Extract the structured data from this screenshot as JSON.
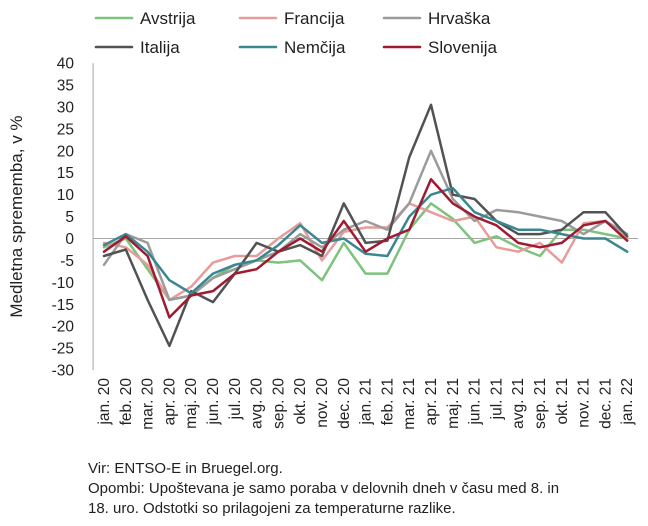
{
  "chart_data": {
    "type": "line",
    "ylabel": "Medletna sprememba, v %",
    "ylim": [
      -30,
      40
    ],
    "yticks": [
      40,
      35,
      30,
      25,
      20,
      15,
      10,
      5,
      0,
      -5,
      -10,
      -15,
      -20,
      -25,
      -30
    ],
    "grid": false,
    "legend_position": "top",
    "categories": [
      "jan. 20",
      "feb. 20",
      "mar. 20",
      "apr. 20",
      "maj. 20",
      "jun. 20",
      "jul. 20",
      "avg. 20",
      "sep. 20",
      "okt. 20",
      "nov. 20",
      "dec. 20",
      "jan. 21",
      "feb. 21",
      "mar. 21",
      "apr. 21",
      "maj. 21",
      "jun. 21",
      "jul. 21",
      "avg. 21",
      "sep. 21",
      "okt. 21",
      "nov. 21",
      "dec. 21",
      "jan. 22"
    ],
    "series": [
      {
        "name": "Avstrija",
        "color": "#7dc37d",
        "values": [
          -2,
          0,
          -7,
          -14,
          -13,
          -9,
          -6,
          -5,
          -5.5,
          -5,
          -9.5,
          -1,
          -8,
          -8,
          2,
          8,
          4.5,
          -1,
          0.5,
          -2,
          -4,
          2,
          2,
          1,
          0
        ]
      },
      {
        "name": "Francija",
        "color": "#e89c9a",
        "values": [
          -1,
          -2,
          -6,
          -14,
          -11,
          -5.5,
          -4,
          -4,
          0,
          3.5,
          -5,
          1.5,
          2.5,
          2.5,
          8,
          6,
          4,
          5,
          -2,
          -3,
          -1,
          -5.5,
          3.5,
          4,
          0
        ]
      },
      {
        "name": "Hrvaška",
        "color": "#9b9b9b",
        "values": [
          -6,
          1,
          -1,
          -14,
          -13,
          -9,
          -7,
          -5,
          -3,
          1,
          -2,
          2,
          4,
          2,
          8,
          20,
          9,
          4,
          6.5,
          6,
          5,
          4,
          1,
          4,
          1
        ]
      },
      {
        "name": "Italija",
        "color": "#525252",
        "values": [
          -4,
          -2.5,
          -14,
          -24.5,
          -12,
          -14.5,
          -8,
          -1,
          -3,
          -1.5,
          -4,
          8,
          -1,
          -0.5,
          18.5,
          30.5,
          10,
          9,
          4,
          1,
          1,
          2,
          6,
          6,
          0.5
        ]
      },
      {
        "name": "Nemčija",
        "color": "#3a8791",
        "values": [
          -1.5,
          1,
          -3,
          -9.5,
          -12.5,
          -8,
          -6,
          -5,
          -1.5,
          3,
          -1,
          0,
          -3.5,
          -4,
          5,
          10,
          11.5,
          6,
          4,
          2,
          2,
          1,
          0,
          0,
          -3
        ]
      },
      {
        "name": "Slovenija",
        "color": "#9e1b32",
        "values": [
          -3,
          0.5,
          -4,
          -18,
          -13,
          -12,
          -8,
          -7,
          -3,
          0,
          -3,
          4,
          -3,
          0,
          2,
          13.5,
          8,
          5,
          3,
          -1,
          -2,
          -1,
          3,
          4,
          -0.5
        ]
      }
    ]
  },
  "notes": {
    "source": "Vir: ENTSO-E in Bruegel.org.",
    "remarks_line1": "Opombi: Upoštevana je samo poraba v delovnih dneh v času med 8. in",
    "remarks_line2": "18. uro. Odstotki so prilagojeni za temperaturne razlike."
  }
}
